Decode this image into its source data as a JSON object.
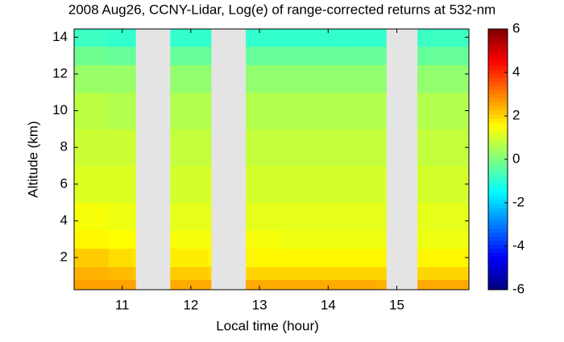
{
  "chart_data": {
    "type": "heatmap",
    "title": "2008 Aug26, CCNY-Lidar, Log(e) of range-corrected returns at 532-nm",
    "x_label": "Local time (hour)",
    "y_label": "Altitude (km)",
    "xbins": [
      10.3,
      10.8,
      11.15,
      11.2,
      11.7,
      12.25,
      12.3,
      12.8,
      13.3,
      13.8,
      14.3,
      14.7,
      14.85,
      15.3,
      15.8,
      16.05
    ],
    "ybins": [
      0.25,
      0.8,
      1.5,
      2.5,
      3.5,
      5,
      7,
      9,
      11,
      12.5,
      13.5,
      14.45
    ],
    "z": [
      [
        2.6,
        2.6,
        2.6,
        null,
        2.5,
        2.5,
        null,
        2.5,
        2.5,
        2.5,
        2.5,
        2.4,
        null,
        2.5,
        2.5
      ],
      [
        2.4,
        2.3,
        2.2,
        null,
        2.1,
        2.0,
        null,
        2.0,
        2.0,
        2.0,
        2.0,
        2.0,
        null,
        2.0,
        2.0
      ],
      [
        2.1,
        1.9,
        1.8,
        null,
        1.7,
        1.6,
        null,
        1.6,
        1.6,
        1.6,
        1.6,
        1.6,
        null,
        1.6,
        1.6
      ],
      [
        1.6,
        1.5,
        1.5,
        null,
        1.4,
        1.4,
        null,
        1.4,
        1.3,
        1.3,
        1.3,
        1.3,
        null,
        1.3,
        1.3
      ],
      [
        1.4,
        1.3,
        1.3,
        null,
        1.2,
        1.2,
        null,
        1.2,
        1.2,
        1.2,
        1.2,
        1.2,
        null,
        1.2,
        1.2
      ],
      [
        1.1,
        1.1,
        1.1,
        null,
        1.0,
        1.0,
        null,
        1.0,
        1.0,
        1.0,
        1.0,
        1.0,
        null,
        1.0,
        1.0
      ],
      [
        0.9,
        0.9,
        0.9,
        null,
        0.8,
        0.8,
        null,
        0.8,
        0.8,
        0.8,
        0.8,
        0.8,
        null,
        0.8,
        0.8
      ],
      [
        0.7,
        0.6,
        0.6,
        null,
        0.6,
        0.6,
        null,
        0.6,
        0.6,
        0.6,
        0.6,
        0.6,
        null,
        0.6,
        0.6
      ],
      [
        0.3,
        0.3,
        0.3,
        null,
        0.2,
        0.2,
        null,
        0.2,
        0.2,
        0.2,
        0.2,
        0.2,
        null,
        0.2,
        0.2
      ],
      [
        -0.2,
        -0.3,
        -0.3,
        null,
        -0.3,
        -0.3,
        null,
        -0.3,
        -0.3,
        -0.3,
        -0.3,
        -0.3,
        null,
        -0.3,
        -0.3
      ],
      [
        -0.8,
        -0.9,
        -0.9,
        null,
        -0.9,
        -0.9,
        null,
        -0.9,
        -0.9,
        -0.9,
        -0.9,
        -0.9,
        null,
        -0.8,
        -0.8
      ]
    ],
    "missing_color": "#e4e4e4",
    "colormap": "jet",
    "xlim": [
      10.3,
      16.05
    ],
    "xticks": [
      11,
      12,
      13,
      14,
      15
    ],
    "ylim": [
      0.25,
      14.45
    ],
    "yticks": [
      2,
      4,
      6,
      8,
      10,
      12,
      14
    ],
    "zlim": [
      -6,
      6
    ],
    "zticks": [
      -6,
      -4,
      -2,
      0,
      2,
      4,
      6
    ]
  }
}
